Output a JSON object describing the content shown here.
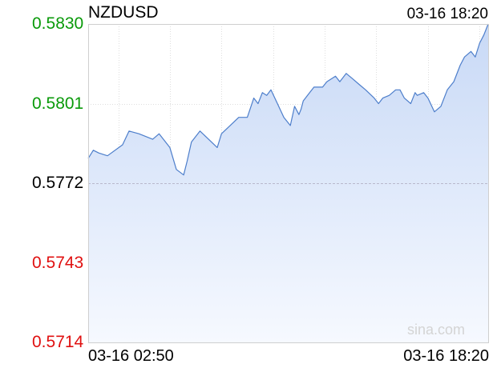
{
  "header": {
    "symbol": "NZDUSD",
    "timestamp": "03-16 18:20"
  },
  "watermark": "sina.com",
  "colors": {
    "up": "#0a9a0a",
    "down": "#e01010",
    "neutral": "#000000",
    "line": "#4d7ecb",
    "fill_top": "#c8d9f6",
    "fill_bottom": "#f6f9ff",
    "grid": "#dedede",
    "base_line": "#b9b9cc"
  },
  "chart_data": {
    "type": "area",
    "title": "NZDUSD",
    "base_price": 0.5772,
    "y_ticks": [
      {
        "value": 0.583,
        "label": "0.5830",
        "tone": "up"
      },
      {
        "value": 0.5801,
        "label": "0.5801",
        "tone": "up"
      },
      {
        "value": 0.5772,
        "label": "0.5772",
        "tone": "neutral"
      },
      {
        "value": 0.5743,
        "label": "0.5743",
        "tone": "down"
      },
      {
        "value": 0.5714,
        "label": "0.5714",
        "tone": "down"
      }
    ],
    "ylim": [
      0.5714,
      0.583
    ],
    "xlim": [
      0,
      930
    ],
    "x_tick_labels": [
      {
        "pos": 0,
        "label": "03-16 02:50"
      },
      {
        "pos": 930,
        "label": "03-16 18:20"
      }
    ],
    "x_unit": "minutes from 03-16 02:50",
    "x": [
      0,
      12,
      25,
      45,
      80,
      95,
      118,
      150,
      165,
      190,
      205,
      222,
      230,
      240,
      260,
      280,
      300,
      310,
      330,
      350,
      370,
      385,
      395,
      405,
      415,
      425,
      440,
      455,
      470,
      480,
      490,
      495,
      500,
      515,
      525,
      545,
      555,
      575,
      585,
      600,
      615,
      630,
      645,
      665,
      675,
      685,
      700,
      715,
      725,
      735,
      750,
      760,
      765,
      780,
      790,
      805,
      820,
      835,
      850,
      865,
      875,
      890,
      900,
      910,
      920,
      930
    ],
    "y": [
      0.5781,
      0.5784,
      0.5783,
      0.5782,
      0.5786,
      0.5791,
      0.579,
      0.5788,
      0.579,
      0.5785,
      0.5777,
      0.5775,
      0.578,
      0.5787,
      0.5791,
      0.5788,
      0.5785,
      0.579,
      0.5793,
      0.5796,
      0.5796,
      0.5803,
      0.5801,
      0.5805,
      0.5804,
      0.5806,
      0.5801,
      0.5796,
      0.5793,
      0.58,
      0.5797,
      0.5799,
      0.5802,
      0.5805,
      0.5807,
      0.5807,
      0.5809,
      0.5811,
      0.5809,
      0.5812,
      0.581,
      0.5808,
      0.5806,
      0.5803,
      0.5801,
      0.5803,
      0.5804,
      0.5806,
      0.5806,
      0.5803,
      0.5801,
      0.5805,
      0.5804,
      0.5805,
      0.5803,
      0.5798,
      0.58,
      0.5806,
      0.5809,
      0.5815,
      0.5818,
      0.582,
      0.5818,
      0.5823,
      0.5826,
      0.583
    ]
  }
}
